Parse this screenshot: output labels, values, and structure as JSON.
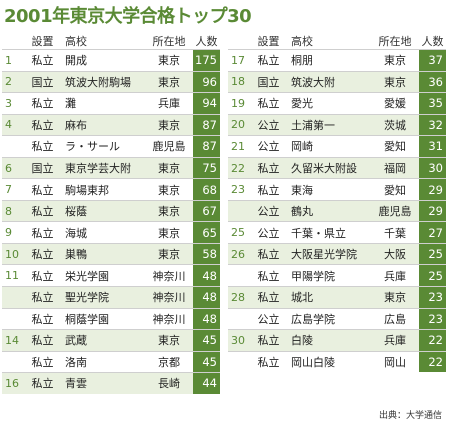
{
  "title": "2001年東京大学合格トップ30",
  "headers": {
    "type": "設置",
    "school": "高校",
    "loc": "所在地",
    "num": "人数"
  },
  "left_rows": [
    {
      "rank": "1",
      "type": "私立",
      "school": "開成",
      "loc": "東京",
      "num": "175"
    },
    {
      "rank": "2",
      "type": "国立",
      "school": "筑波大附駒場",
      "loc": "東京",
      "num": "96"
    },
    {
      "rank": "3",
      "type": "私立",
      "school": "灘",
      "loc": "兵庫",
      "num": "94"
    },
    {
      "rank": "4",
      "type": "私立",
      "school": "麻布",
      "loc": "東京",
      "num": "87"
    },
    {
      "rank": "",
      "type": "私立",
      "school": "ラ・サール",
      "loc": "鹿児島",
      "num": "87"
    },
    {
      "rank": "6",
      "type": "国立",
      "school": "東京学芸大附",
      "loc": "東京",
      "num": "75"
    },
    {
      "rank": "7",
      "type": "私立",
      "school": "駒場東邦",
      "loc": "東京",
      "num": "68"
    },
    {
      "rank": "8",
      "type": "私立",
      "school": "桜蔭",
      "loc": "東京",
      "num": "67"
    },
    {
      "rank": "9",
      "type": "私立",
      "school": "海城",
      "loc": "東京",
      "num": "65"
    },
    {
      "rank": "10",
      "type": "私立",
      "school": "巣鴨",
      "loc": "東京",
      "num": "58"
    },
    {
      "rank": "11",
      "type": "私立",
      "school": "栄光学園",
      "loc": "神奈川",
      "num": "48"
    },
    {
      "rank": "",
      "type": "私立",
      "school": "聖光学院",
      "loc": "神奈川",
      "num": "48"
    },
    {
      "rank": "",
      "type": "私立",
      "school": "桐蔭学園",
      "loc": "神奈川",
      "num": "48"
    },
    {
      "rank": "14",
      "type": "私立",
      "school": "武蔵",
      "loc": "東京",
      "num": "45"
    },
    {
      "rank": "",
      "type": "私立",
      "school": "洛南",
      "loc": "京都",
      "num": "45"
    },
    {
      "rank": "16",
      "type": "私立",
      "school": "青雲",
      "loc": "長崎",
      "num": "44"
    }
  ],
  "right_rows": [
    {
      "rank": "17",
      "type": "私立",
      "school": "桐朋",
      "loc": "東京",
      "num": "37"
    },
    {
      "rank": "18",
      "type": "国立",
      "school": "筑波大附",
      "loc": "東京",
      "num": "36"
    },
    {
      "rank": "19",
      "type": "私立",
      "school": "愛光",
      "loc": "愛媛",
      "num": "35"
    },
    {
      "rank": "20",
      "type": "公立",
      "school": "土浦第一",
      "loc": "茨城",
      "num": "32"
    },
    {
      "rank": "21",
      "type": "公立",
      "school": "岡崎",
      "loc": "愛知",
      "num": "31"
    },
    {
      "rank": "22",
      "type": "私立",
      "school": "久留米大附設",
      "loc": "福岡",
      "num": "30"
    },
    {
      "rank": "23",
      "type": "私立",
      "school": "東海",
      "loc": "愛知",
      "num": "29"
    },
    {
      "rank": "",
      "type": "公立",
      "school": "鶴丸",
      "loc": "鹿児島",
      "num": "29"
    },
    {
      "rank": "25",
      "type": "公立",
      "school": "千葉・県立",
      "loc": "千葉",
      "num": "27"
    },
    {
      "rank": "26",
      "type": "私立",
      "school": "大阪星光学院",
      "loc": "大阪",
      "num": "25"
    },
    {
      "rank": "",
      "type": "私立",
      "school": "甲陽学院",
      "loc": "兵庫",
      "num": "25"
    },
    {
      "rank": "28",
      "type": "私立",
      "school": "城北",
      "loc": "東京",
      "num": "23"
    },
    {
      "rank": "",
      "type": "公立",
      "school": "広島学院",
      "loc": "広島",
      "num": "23"
    },
    {
      "rank": "30",
      "type": "私立",
      "school": "白陵",
      "loc": "兵庫",
      "num": "22"
    },
    {
      "rank": "",
      "type": "私立",
      "school": "岡山白陵",
      "loc": "岡山",
      "num": "22"
    }
  ],
  "source": "出典：大学通信"
}
